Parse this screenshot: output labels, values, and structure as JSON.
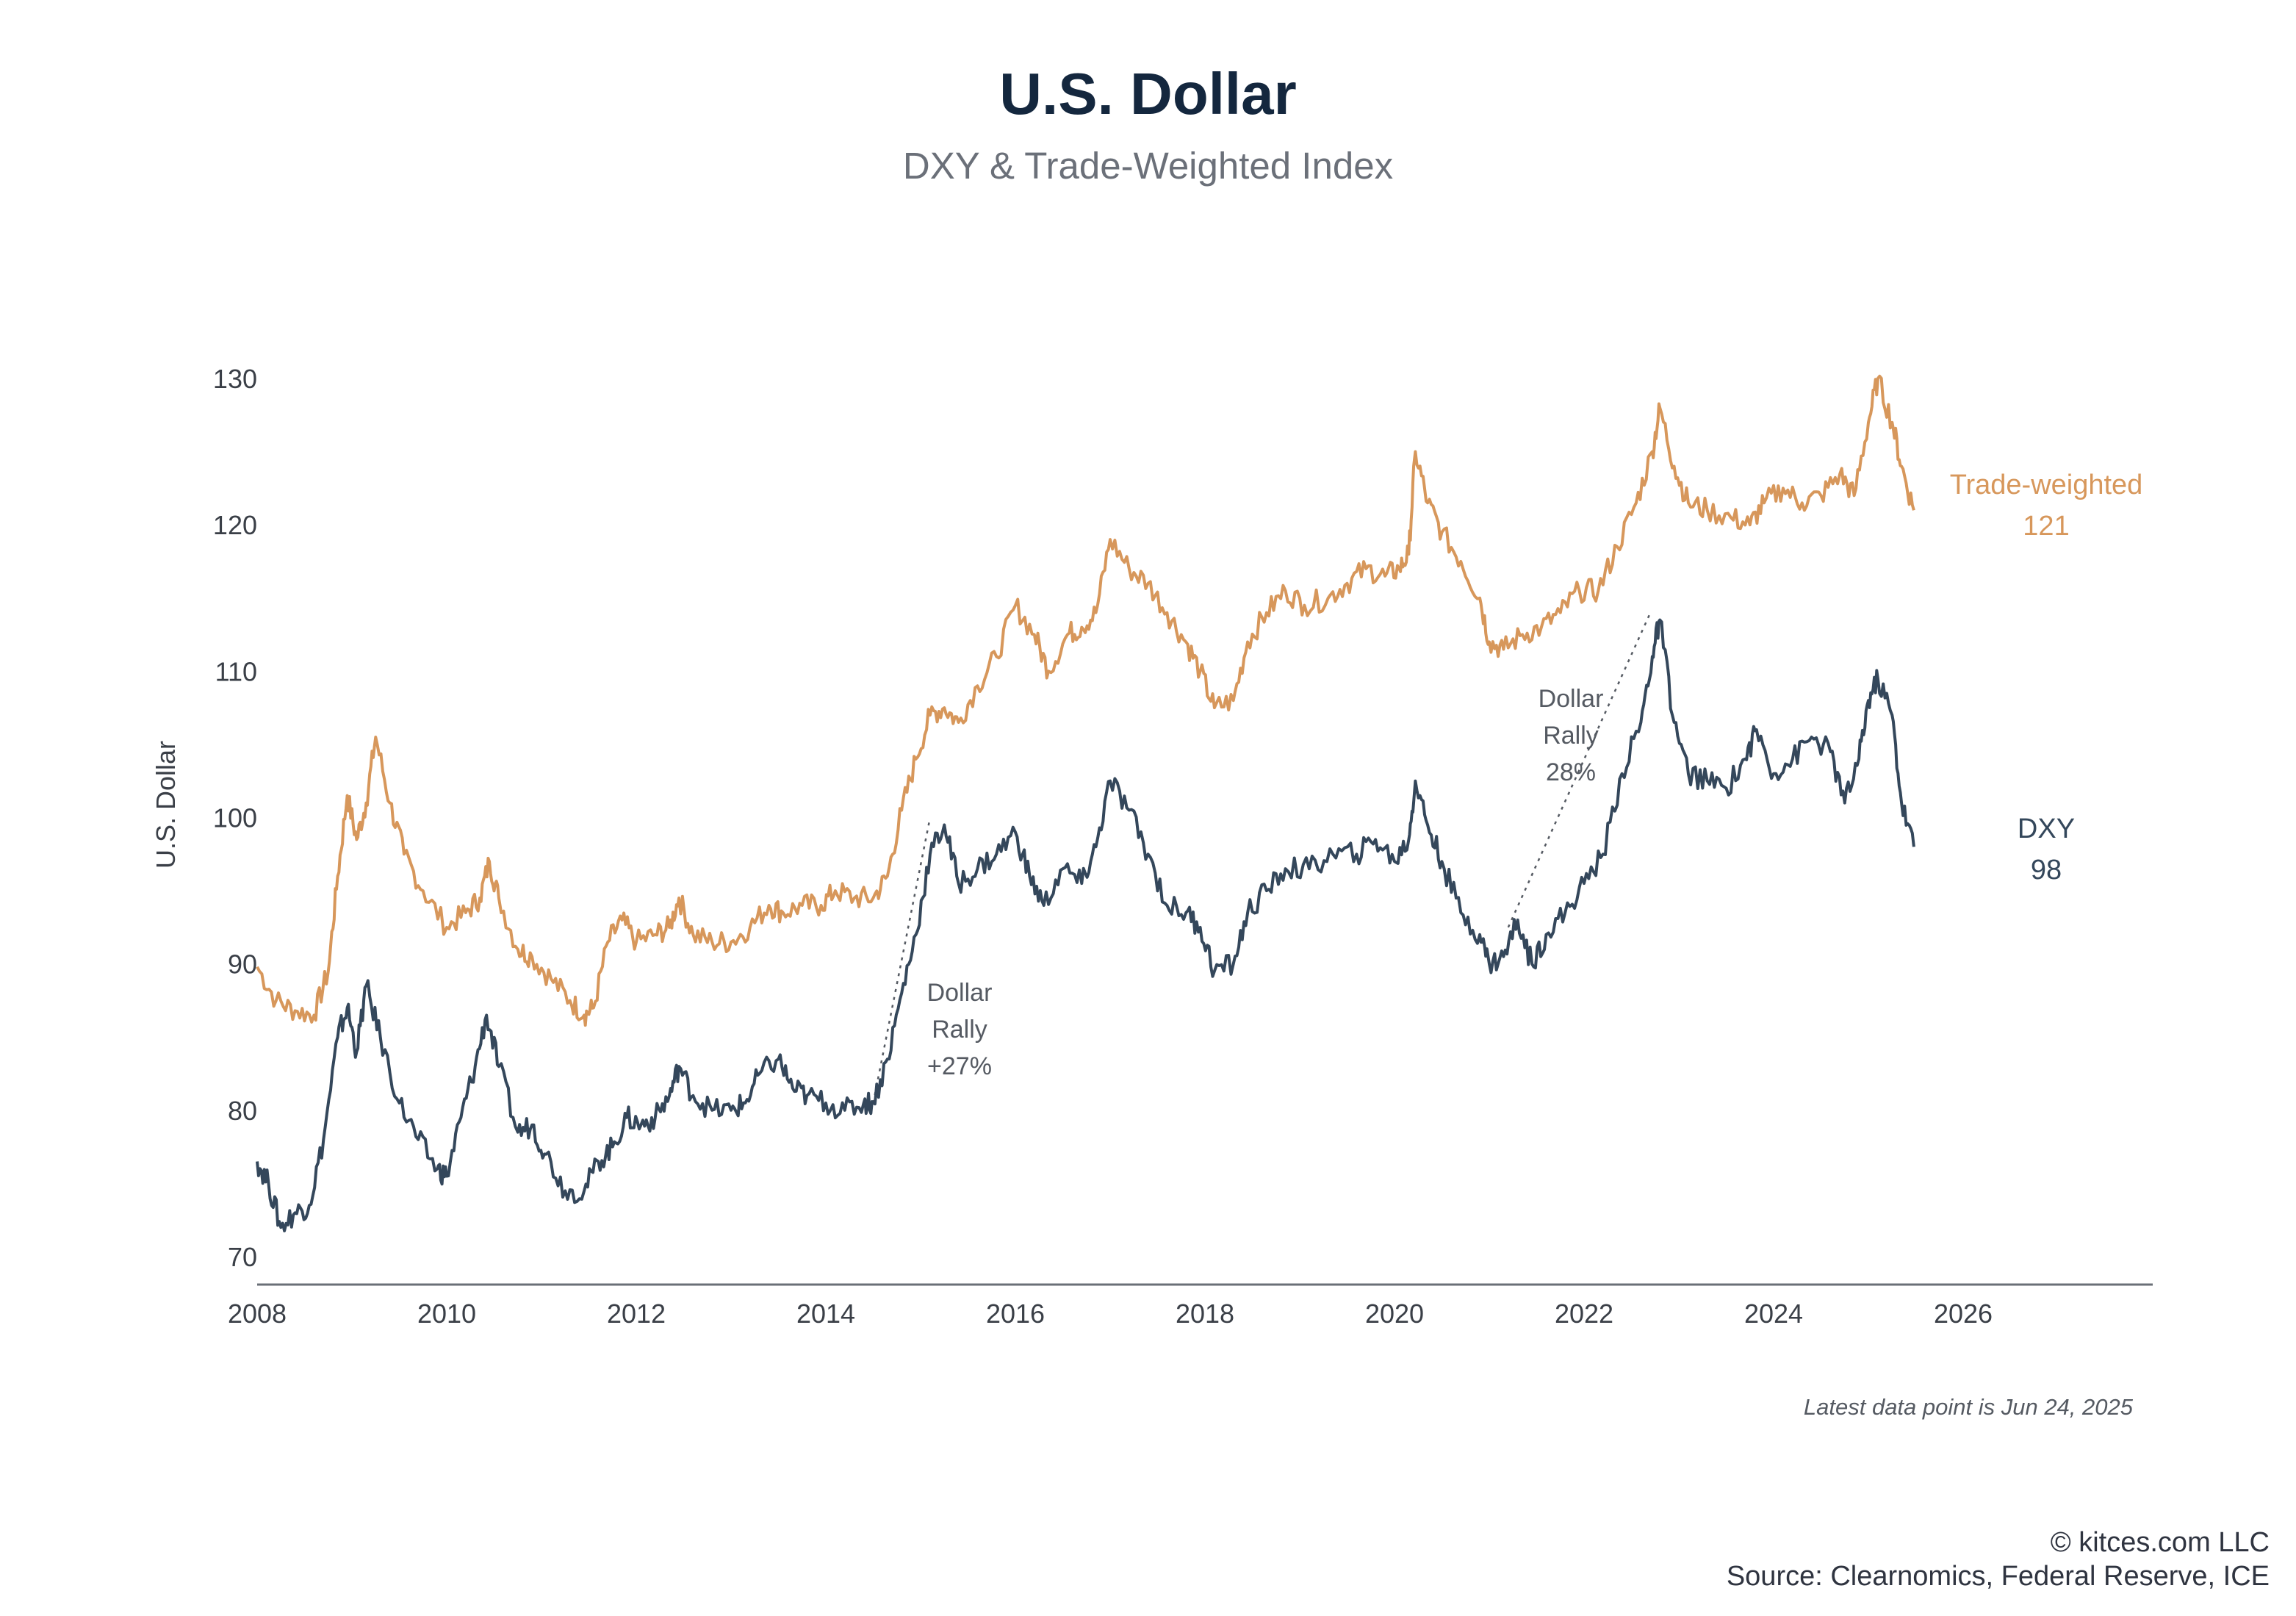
{
  "title": "U.S. Dollar",
  "subtitle": "DXY & Trade-Weighted Index",
  "note": "Latest data point is Jun 24, 2025",
  "copyright": "© kitces.com LLC",
  "source": "Source: Clearnomics, Federal Reserve, ICE",
  "colors": {
    "dxy": "#34475b",
    "trade_weighted": "#d7975b",
    "annotation": "#555a62"
  },
  "chart_data": {
    "type": "line",
    "title": "U.S. Dollar",
    "subtitle": "DXY & Trade-Weighted Index",
    "ylabel": "U.S. Dollar",
    "xlabel": "",
    "ylim": [
      70,
      130
    ],
    "xlim": [
      2008,
      2028
    ],
    "x_ticks": [
      "2008",
      "2010",
      "2012",
      "2014",
      "2016",
      "2018",
      "2020",
      "2022",
      "2024",
      "2026"
    ],
    "y_ticks": [
      "70",
      "80",
      "90",
      "100",
      "110",
      "120",
      "130"
    ],
    "grid": false,
    "series": [
      {
        "name": "Trade-weighted",
        "end_label": "Trade-weighted",
        "end_value_label": "121",
        "color": "#d7975b",
        "points": [
          [
            2008.0,
            89.8
          ],
          [
            2008.2,
            87.5
          ],
          [
            2008.4,
            86.8
          ],
          [
            2008.6,
            86.5
          ],
          [
            2008.75,
            89.5
          ],
          [
            2008.85,
            96
          ],
          [
            2008.95,
            101.5
          ],
          [
            2009.05,
            98.5
          ],
          [
            2009.15,
            101
          ],
          [
            2009.25,
            105.5
          ],
          [
            2009.4,
            101
          ],
          [
            2009.55,
            97.5
          ],
          [
            2009.75,
            95
          ],
          [
            2010.0,
            92.5
          ],
          [
            2010.2,
            93.5
          ],
          [
            2010.35,
            94.5
          ],
          [
            2010.45,
            97
          ],
          [
            2010.55,
            94.5
          ],
          [
            2010.75,
            91
          ],
          [
            2010.9,
            90.5
          ],
          [
            2011.1,
            89
          ],
          [
            2011.3,
            87.5
          ],
          [
            2011.45,
            86.5
          ],
          [
            2011.55,
            87
          ],
          [
            2011.7,
            91.5
          ],
          [
            2011.85,
            93
          ],
          [
            2012.0,
            91.5
          ],
          [
            2012.2,
            92
          ],
          [
            2012.35,
            92.5
          ],
          [
            2012.45,
            94.5
          ],
          [
            2012.6,
            92
          ],
          [
            2012.8,
            91.5
          ],
          [
            2013.0,
            91.5
          ],
          [
            2013.2,
            92.5
          ],
          [
            2013.4,
            94
          ],
          [
            2013.55,
            93.5
          ],
          [
            2013.75,
            94
          ],
          [
            2013.95,
            94
          ],
          [
            2014.1,
            95
          ],
          [
            2014.3,
            94.5
          ],
          [
            2014.5,
            94.5
          ],
          [
            2014.65,
            96
          ],
          [
            2014.8,
            100.5
          ],
          [
            2014.95,
            104
          ],
          [
            2015.1,
            107
          ],
          [
            2015.25,
            107.5
          ],
          [
            2015.4,
            106.5
          ],
          [
            2015.6,
            109
          ],
          [
            2015.8,
            111
          ],
          [
            2016.0,
            114.5
          ],
          [
            2016.2,
            112.5
          ],
          [
            2016.35,
            110
          ],
          [
            2016.55,
            112.5
          ],
          [
            2016.7,
            113
          ],
          [
            2016.85,
            114
          ],
          [
            2017.0,
            119
          ],
          [
            2017.2,
            117
          ],
          [
            2017.4,
            116
          ],
          [
            2017.6,
            114
          ],
          [
            2017.8,
            112
          ],
          [
            2017.95,
            110
          ],
          [
            2018.1,
            107.5
          ],
          [
            2018.3,
            108
          ],
          [
            2018.45,
            112
          ],
          [
            2018.65,
            114
          ],
          [
            2018.85,
            115.5
          ],
          [
            2019.05,
            114.5
          ],
          [
            2019.3,
            115
          ],
          [
            2019.5,
            116
          ],
          [
            2019.7,
            117
          ],
          [
            2019.9,
            116.5
          ],
          [
            2020.05,
            117
          ],
          [
            2020.15,
            118
          ],
          [
            2020.22,
            125
          ],
          [
            2020.35,
            121.5
          ],
          [
            2020.5,
            119.5
          ],
          [
            2020.7,
            117.5
          ],
          [
            2020.9,
            115
          ],
          [
            2021.0,
            112
          ],
          [
            2021.15,
            111.5
          ],
          [
            2021.35,
            112.5
          ],
          [
            2021.55,
            113
          ],
          [
            2021.75,
            114
          ],
          [
            2021.95,
            115.5
          ],
          [
            2022.15,
            115.5
          ],
          [
            2022.35,
            118.5
          ],
          [
            2022.55,
            121.5
          ],
          [
            2022.72,
            125
          ],
          [
            2022.8,
            128
          ],
          [
            2022.95,
            124
          ],
          [
            2023.1,
            121.5
          ],
          [
            2023.3,
            121
          ],
          [
            2023.55,
            120.5
          ],
          [
            2023.75,
            120
          ],
          [
            2023.9,
            121.5
          ],
          [
            2024.1,
            122.5
          ],
          [
            2024.3,
            121.5
          ],
          [
            2024.5,
            122
          ],
          [
            2024.7,
            123.5
          ],
          [
            2024.85,
            122
          ],
          [
            2025.0,
            127
          ],
          [
            2025.1,
            130
          ],
          [
            2025.25,
            127
          ],
          [
            2025.35,
            124
          ],
          [
            2025.48,
            121
          ]
        ]
      },
      {
        "name": "DXY",
        "end_label": "DXY",
        "end_value_label": "98",
        "color": "#34475b",
        "points": [
          [
            2008.0,
            76.5
          ],
          [
            2008.12,
            75
          ],
          [
            2008.25,
            72
          ],
          [
            2008.4,
            73
          ],
          [
            2008.55,
            73.5
          ],
          [
            2008.7,
            78
          ],
          [
            2008.85,
            85
          ],
          [
            2008.95,
            87
          ],
          [
            2009.05,
            84
          ],
          [
            2009.15,
            88.5
          ],
          [
            2009.3,
            85
          ],
          [
            2009.5,
            80.5
          ],
          [
            2009.7,
            78
          ],
          [
            2009.9,
            76
          ],
          [
            2010.0,
            75.5
          ],
          [
            2010.15,
            79.5
          ],
          [
            2010.3,
            83
          ],
          [
            2010.42,
            86.5
          ],
          [
            2010.55,
            83
          ],
          [
            2010.75,
            78.5
          ],
          [
            2010.9,
            79
          ],
          [
            2011.05,
            77
          ],
          [
            2011.25,
            74.5
          ],
          [
            2011.45,
            74.5
          ],
          [
            2011.6,
            76.5
          ],
          [
            2011.75,
            77.5
          ],
          [
            2011.9,
            79.5
          ],
          [
            2012.05,
            79
          ],
          [
            2012.2,
            79.5
          ],
          [
            2012.35,
            81
          ],
          [
            2012.45,
            83
          ],
          [
            2012.6,
            81
          ],
          [
            2012.8,
            80
          ],
          [
            2013.0,
            80
          ],
          [
            2013.15,
            80.5
          ],
          [
            2013.3,
            82.5
          ],
          [
            2013.5,
            83.5
          ],
          [
            2013.65,
            81.5
          ],
          [
            2013.8,
            81
          ],
          [
            2014.0,
            80.5
          ],
          [
            2014.2,
            80
          ],
          [
            2014.4,
            80.5
          ],
          [
            2014.5,
            80.5
          ],
          [
            2014.65,
            83.5
          ],
          [
            2014.8,
            88
          ],
          [
            2014.95,
            92
          ],
          [
            2015.1,
            97.5
          ],
          [
            2015.25,
            99.5
          ],
          [
            2015.4,
            95.5
          ],
          [
            2015.6,
            96.5
          ],
          [
            2015.8,
            97.5
          ],
          [
            2016.0,
            99
          ],
          [
            2016.15,
            96
          ],
          [
            2016.3,
            94
          ],
          [
            2016.5,
            96.5
          ],
          [
            2016.7,
            95.5
          ],
          [
            2016.85,
            98
          ],
          [
            2017.0,
            102.5
          ],
          [
            2017.2,
            100.5
          ],
          [
            2017.4,
            97.5
          ],
          [
            2017.6,
            94
          ],
          [
            2017.8,
            93.5
          ],
          [
            2017.95,
            92.5
          ],
          [
            2018.1,
            89.5
          ],
          [
            2018.3,
            90
          ],
          [
            2018.45,
            93.5
          ],
          [
            2018.65,
            95
          ],
          [
            2018.85,
            96.5
          ],
          [
            2019.1,
            96.5
          ],
          [
            2019.35,
            97.5
          ],
          [
            2019.6,
            97.5
          ],
          [
            2019.8,
            98.5
          ],
          [
            2020.0,
            97
          ],
          [
            2020.15,
            98.5
          ],
          [
            2020.22,
            102.5
          ],
          [
            2020.35,
            99.5
          ],
          [
            2020.5,
            97
          ],
          [
            2020.7,
            93.5
          ],
          [
            2020.9,
            92
          ],
          [
            2021.0,
            90
          ],
          [
            2021.15,
            90.5
          ],
          [
            2021.3,
            93
          ],
          [
            2021.45,
            90
          ],
          [
            2021.6,
            92
          ],
          [
            2021.8,
            93.5
          ],
          [
            2022.0,
            95.5
          ],
          [
            2022.2,
            97.5
          ],
          [
            2022.4,
            103
          ],
          [
            2022.6,
            106.5
          ],
          [
            2022.72,
            111
          ],
          [
            2022.8,
            113.5
          ],
          [
            2022.95,
            106.5
          ],
          [
            2023.1,
            103
          ],
          [
            2023.3,
            102.5
          ],
          [
            2023.5,
            102
          ],
          [
            2023.7,
            104
          ],
          [
            2023.82,
            106
          ],
          [
            2024.0,
            103
          ],
          [
            2024.2,
            104
          ],
          [
            2024.4,
            105.5
          ],
          [
            2024.6,
            104.5
          ],
          [
            2024.75,
            101
          ],
          [
            2024.9,
            104
          ],
          [
            2025.0,
            108
          ],
          [
            2025.1,
            109.5
          ],
          [
            2025.25,
            107
          ],
          [
            2025.35,
            101
          ],
          [
            2025.48,
            98
          ]
        ]
      }
    ],
    "annotations": [
      {
        "lines": [
          "Dollar",
          "Rally",
          "+27%"
        ],
        "from": [
          2014.5,
          80.5
        ],
        "to": [
          2015.1,
          100
        ]
      },
      {
        "lines": [
          "Dollar",
          "Rally",
          "28%"
        ],
        "from": [
          2021.2,
          92.5
        ],
        "to": [
          2022.7,
          114
        ]
      }
    ]
  }
}
